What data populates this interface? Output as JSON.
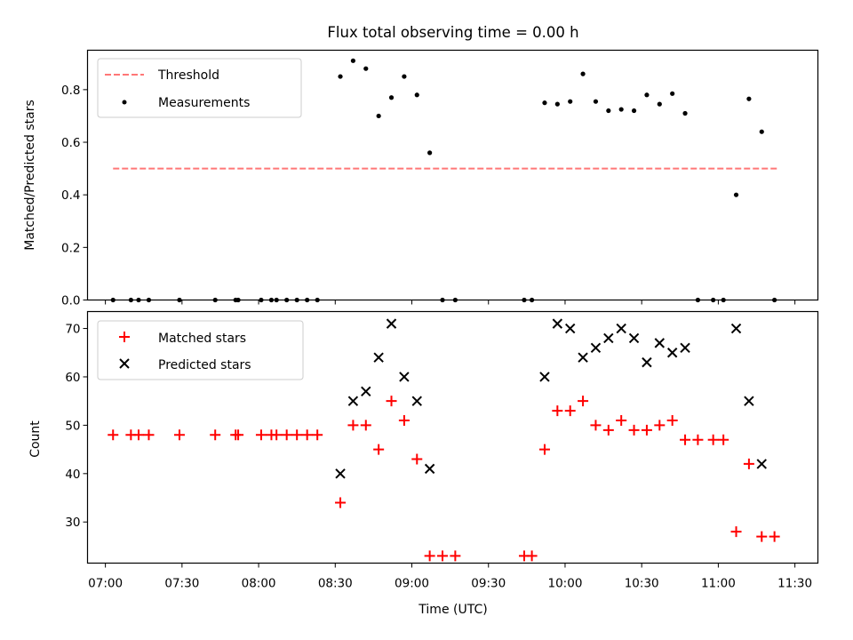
{
  "chart_data": [
    {
      "type": "scatter",
      "title": "Flux total observing time = 0.00 h",
      "xlabel": "",
      "ylabel": "Matched/Predicted stars",
      "xlim": [
        "06:53",
        "11:39"
      ],
      "ylim": [
        0,
        0.95
      ],
      "y_ticks": [
        "0.0",
        "0.2",
        "0.4",
        "0.6",
        "0.8"
      ],
      "legend_position": "upper-left",
      "grid": false,
      "threshold": {
        "name": "Threshold",
        "value": 0.5,
        "x_start": "07:03",
        "x_end": "11:23",
        "color": "#ff7777",
        "style": "dashed"
      },
      "series": [
        {
          "name": "Measurements",
          "color": "#000000",
          "marker": "dot",
          "points": [
            [
              "07:03",
              0
            ],
            [
              "07:10",
              0
            ],
            [
              "07:13",
              0
            ],
            [
              "07:17",
              0
            ],
            [
              "07:29",
              0
            ],
            [
              "07:43",
              0
            ],
            [
              "07:51",
              0
            ],
            [
              "07:52",
              0
            ],
            [
              "08:01",
              0
            ],
            [
              "08:05",
              0
            ],
            [
              "08:07",
              0
            ],
            [
              "08:11",
              0
            ],
            [
              "08:15",
              0
            ],
            [
              "08:19",
              0
            ],
            [
              "08:23",
              0
            ],
            [
              "08:32",
              0.85
            ],
            [
              "08:37",
              0.91
            ],
            [
              "08:42",
              0.88
            ],
            [
              "08:47",
              0.7
            ],
            [
              "08:52",
              0.77
            ],
            [
              "08:57",
              0.85
            ],
            [
              "09:02",
              0.78
            ],
            [
              "09:07",
              0.56
            ],
            [
              "09:12",
              0
            ],
            [
              "09:17",
              0
            ],
            [
              "09:44",
              0
            ],
            [
              "09:47",
              0
            ],
            [
              "09:52",
              0.75
            ],
            [
              "09:57",
              0.745
            ],
            [
              "10:02",
              0.755
            ],
            [
              "10:07",
              0.86
            ],
            [
              "10:12",
              0.755
            ],
            [
              "10:17",
              0.72
            ],
            [
              "10:22",
              0.725
            ],
            [
              "10:27",
              0.72
            ],
            [
              "10:32",
              0.78
            ],
            [
              "10:37",
              0.745
            ],
            [
              "10:42",
              0.785
            ],
            [
              "10:47",
              0.71
            ],
            [
              "10:52",
              0
            ],
            [
              "10:58",
              0
            ],
            [
              "11:02",
              0
            ],
            [
              "11:07",
              0.4
            ],
            [
              "11:12",
              0.765
            ],
            [
              "11:17",
              0.64
            ],
            [
              "11:22",
              0
            ]
          ]
        }
      ]
    },
    {
      "type": "scatter",
      "title": "",
      "xlabel": "Time (UTC)",
      "ylabel": "Count",
      "xlim": [
        "06:53",
        "11:39"
      ],
      "ylim": [
        21.5,
        73.5
      ],
      "y_ticks": [
        "30",
        "40",
        "50",
        "60",
        "70"
      ],
      "x_ticks": [
        "07:00",
        "07:30",
        "08:00",
        "08:30",
        "09:00",
        "09:30",
        "10:00",
        "10:30",
        "11:00",
        "11:30"
      ],
      "legend_position": "upper-left",
      "grid": false,
      "series": [
        {
          "name": "Matched stars",
          "color": "#ff0000",
          "marker": "plus",
          "points": [
            [
              "07:03",
              48
            ],
            [
              "07:10",
              48
            ],
            [
              "07:13",
              48
            ],
            [
              "07:17",
              48
            ],
            [
              "07:29",
              48
            ],
            [
              "07:43",
              48
            ],
            [
              "07:51",
              48
            ],
            [
              "07:52",
              48
            ],
            [
              "08:01",
              48
            ],
            [
              "08:05",
              48
            ],
            [
              "08:07",
              48
            ],
            [
              "08:11",
              48
            ],
            [
              "08:15",
              48
            ],
            [
              "08:19",
              48
            ],
            [
              "08:23",
              48
            ],
            [
              "08:32",
              34
            ],
            [
              "08:37",
              50
            ],
            [
              "08:42",
              50
            ],
            [
              "08:47",
              45
            ],
            [
              "08:52",
              55
            ],
            [
              "08:57",
              51
            ],
            [
              "09:02",
              43
            ],
            [
              "09:07",
              23
            ],
            [
              "09:12",
              23
            ],
            [
              "09:17",
              23
            ],
            [
              "09:44",
              23
            ],
            [
              "09:47",
              23
            ],
            [
              "09:52",
              45
            ],
            [
              "09:57",
              53
            ],
            [
              "10:02",
              53
            ],
            [
              "10:07",
              55
            ],
            [
              "10:12",
              50
            ],
            [
              "10:17",
              49
            ],
            [
              "10:22",
              51
            ],
            [
              "10:27",
              49
            ],
            [
              "10:32",
              49
            ],
            [
              "10:37",
              50
            ],
            [
              "10:42",
              51
            ],
            [
              "10:47",
              47
            ],
            [
              "10:52",
              47
            ],
            [
              "10:58",
              47
            ],
            [
              "11:02",
              47
            ],
            [
              "11:07",
              28
            ],
            [
              "11:12",
              42
            ],
            [
              "11:17",
              27
            ],
            [
              "11:22",
              27
            ]
          ]
        },
        {
          "name": "Predicted stars",
          "color": "#000000",
          "marker": "x",
          "points": [
            [
              "08:32",
              40
            ],
            [
              "08:37",
              55
            ],
            [
              "08:42",
              57
            ],
            [
              "08:47",
              64
            ],
            [
              "08:52",
              71
            ],
            [
              "08:57",
              60
            ],
            [
              "09:02",
              55
            ],
            [
              "09:07",
              41
            ],
            [
              "09:52",
              60
            ],
            [
              "09:57",
              71
            ],
            [
              "10:02",
              70
            ],
            [
              "10:07",
              64
            ],
            [
              "10:12",
              66
            ],
            [
              "10:17",
              68
            ],
            [
              "10:22",
              70
            ],
            [
              "10:27",
              68
            ],
            [
              "10:32",
              63
            ],
            [
              "10:37",
              67
            ],
            [
              "10:42",
              65
            ],
            [
              "10:47",
              66
            ],
            [
              "11:07",
              70
            ],
            [
              "11:12",
              55
            ],
            [
              "11:17",
              42
            ]
          ]
        }
      ]
    }
  ]
}
